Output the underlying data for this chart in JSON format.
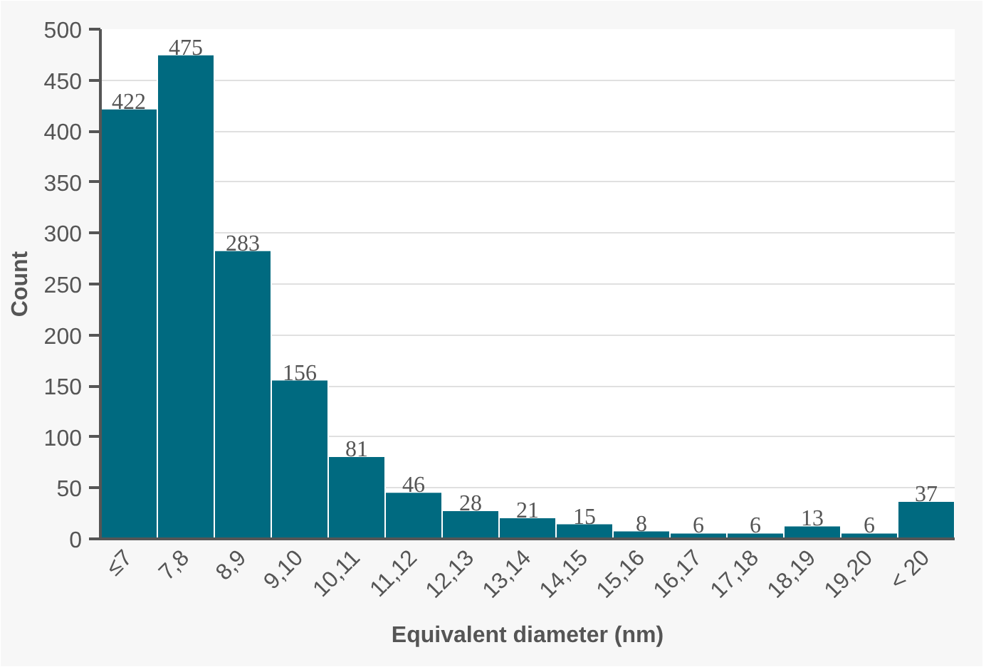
{
  "chart_data": {
    "type": "bar",
    "xlabel": "Equivalent diameter (nm)",
    "ylabel": "Count",
    "categories": [
      "≤7",
      "7,8",
      "8,9",
      "9,10",
      "10,11",
      "11,12",
      "12,13",
      "13,14",
      "14,15",
      "15,16",
      "16,17",
      "17,18",
      "18,19",
      "19,20",
      "< 20"
    ],
    "values": [
      422,
      475,
      283,
      156,
      81,
      46,
      28,
      21,
      15,
      8,
      6,
      6,
      13,
      6,
      37
    ],
    "color": "#006a80",
    "ylim": [
      0,
      500
    ],
    "yticks": [
      0,
      50,
      100,
      150,
      200,
      250,
      300,
      350,
      400,
      450,
      500
    ],
    "grid": "y",
    "data_labels": true
  }
}
